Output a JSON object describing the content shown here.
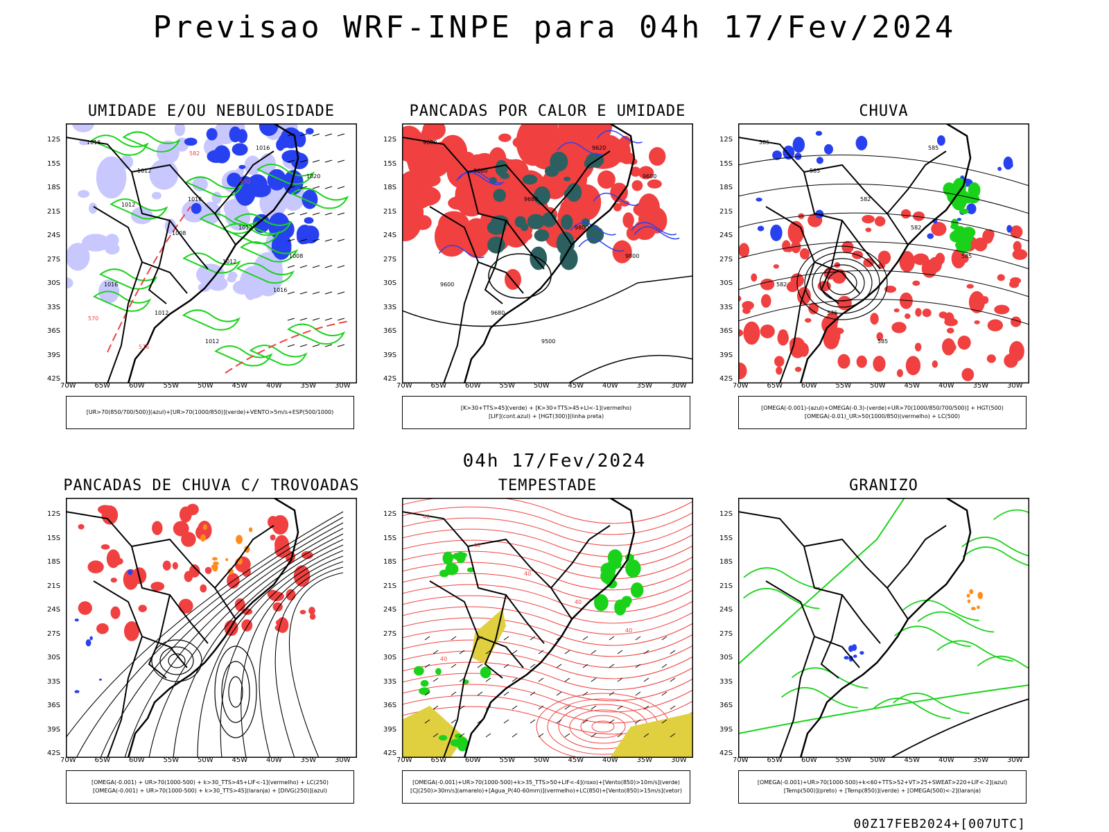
{
  "title": "Previsao WRF-INPE  para 04h 17/Fev/2024",
  "mid_date": "04h 17/Fev/2024",
  "footer": "00Z17FEB2024+[007UTC]",
  "lat_ticks": [
    "12S",
    "15S",
    "18S",
    "21S",
    "24S",
    "27S",
    "30S",
    "33S",
    "36S",
    "39S",
    "42S"
  ],
  "lon_ticks": [
    "70W",
    "65W",
    "60W",
    "55W",
    "50W",
    "45W",
    "40W",
    "35W",
    "30W"
  ],
  "colors": {
    "red": "#f04040",
    "green": "#19d219",
    "blue": "#2841f0",
    "lavender": "#c8c8ff",
    "darkteal": "#2c6060",
    "yellow": "#e0d040",
    "orange": "#ff8c1a"
  },
  "panels": [
    {
      "title": "UMIDADE E/OU NEBULOSIDADE",
      "legend": [
        "[UR>70(850/700/500)](azul)+[UR>70(1000/850)](verde)+VENTO>5m/s+ESP(500/1000)"
      ],
      "labels": [
        "1016",
        "1012",
        "1016",
        "1012",
        "1008",
        "1016",
        "1012",
        "1012",
        "1016",
        "1020",
        "1012",
        "1008",
        "1012",
        "1016",
        "570",
        "576",
        "582",
        "570"
      ]
    },
    {
      "title": "PANCADAS POR CALOR E UMIDADE",
      "legend": [
        "[K>30+TTS>45](verde) + [K>30+TTS>45+LI<-1](vermelho)",
        "[LIF](cont.azul) + [HGT(300)](linha preta)"
      ],
      "labels": [
        "9680",
        "9680",
        "9680",
        "9800",
        "9800",
        "9600",
        "9680",
        "9500",
        "9620",
        "9600"
      ]
    },
    {
      "title": "CHUVA",
      "legend": [
        "[OMEGA(-0.001)-(azul)+OMEGA(-0.3)-(verde)+UR>70(1000/850/700/500)] + HGT(500)",
        "[OMEGA(-0.01)_UR>50(1000/850)(vermelho) + LC(500)"
      ],
      "labels": [
        "585",
        "585",
        "582",
        "582",
        "585",
        "582",
        "576",
        "585",
        "585"
      ]
    },
    {
      "title": "PANCADAS DE CHUVA C/ TROVOADAS",
      "legend": [
        "[OMEGA(-0.001) + UR>70(1000-500) + k>30_TTS>45+LIF<-1](vermelho) + LC(250)",
        "[OMEGA(-0.001) + UR>70(1000-500) + k>30_TTS>45](laranja) + [DIVG(250)](azul)"
      ],
      "labels": []
    },
    {
      "title": "TEMPESTADE",
      "legend": [
        "[OMEGA(-0.001)+UR>70(1000-500)+k>35_TTS>50+LIF<-4](roxo)+[Vento(850)>10m/s](verde)",
        "[CJ(250)>30m/s](amarelo)+[Agua_P(40-60mm)](vermelho)+LC(850)+[Vento(850)>15m/s](vetor)"
      ],
      "labels": [
        "40",
        "40",
        "40",
        "40",
        "40",
        "40"
      ]
    },
    {
      "title": "GRANIZO",
      "legend": [
        "[OMEGA(-0.001)+UR>70(1000-500)+k<60+TTS>52+VT>25+SWEAT>220+LIF<-2](azul)",
        "[Temp(500)](preto) + [Temp(850)](verde) + [OMEGA(500)<-2](laranja)"
      ],
      "labels": []
    }
  ]
}
